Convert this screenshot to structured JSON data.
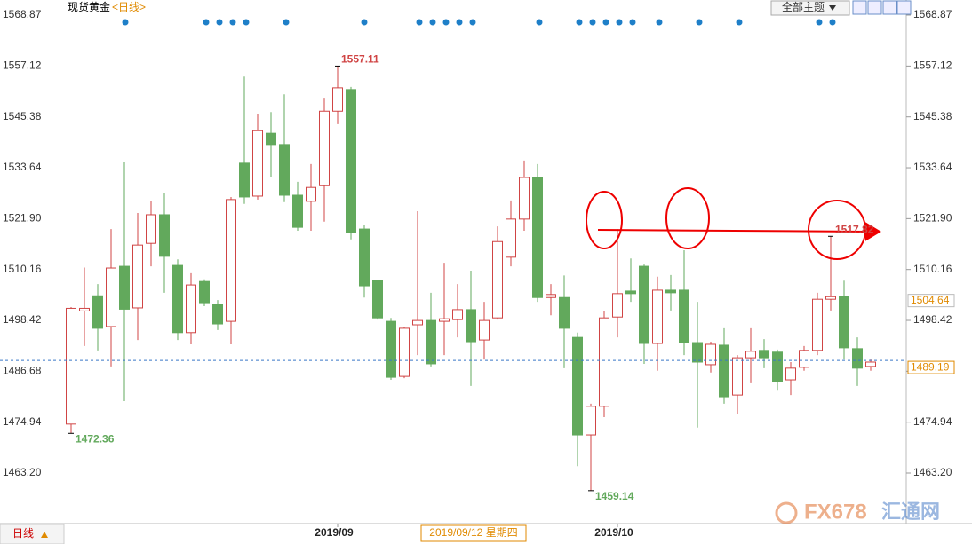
{
  "chart_data": {
    "type": "candlestick",
    "title": "现货黄金",
    "period": "<日线>",
    "theme_button": "全部主题",
    "bottom_period": "日线",
    "cursor_date": "2019/09/12 星期四",
    "watermark": "FX678",
    "watermark_cn": "汇通网",
    "up_color": "#d04444",
    "down_color": "#62a95c",
    "categories": [
      null,
      null,
      null,
      null,
      null,
      null,
      null,
      null,
      null,
      null,
      null,
      null,
      null,
      null,
      null,
      null,
      null,
      null,
      null,
      null,
      "2019/09",
      null,
      null,
      null,
      null,
      null,
      null,
      null,
      null,
      null,
      null,
      null,
      null,
      null,
      null,
      null,
      null,
      null,
      null,
      null,
      null,
      "2019/10",
      null,
      null,
      null,
      null,
      null,
      null,
      null,
      null,
      null,
      null,
      null,
      null,
      null,
      null,
      null,
      null,
      null,
      null,
      null
    ],
    "open": [
      1474.5,
      1500.6,
      1504.1,
      1497,
      1510.9,
      1501.3,
      1516.2,
      1522.8,
      1511.1,
      1495.6,
      1507.4,
      1502.1,
      1498.2,
      1534.7,
      1527.1,
      1541.6,
      1539,
      1527.3,
      1525.9,
      1529.5,
      1546.7,
      1551.7,
      1519.5,
      1507.6,
      1498.2,
      1485.5,
      1497.4,
      1498.4,
      1498.2,
      1498.6,
      1500.9,
      1493.9,
      1499.0,
      1513,
      1521.8,
      1531.4,
      1503.7,
      1503.7,
      1494.5,
      1472,
      1478.6,
      1499.2,
      1505.2,
      1510.9,
      1493.1,
      1505.4,
      1505.4,
      1493.3,
      1488.2,
      1492.7,
      1481.2,
      1489.8,
      1491.5,
      1491.1,
      1484.7,
      1487.6,
      1491.5,
      1503.3,
      1503.9,
      1491.9,
      1487.8
    ],
    "high": [
      1501.5,
      1510.6,
      1506.8,
      1519.5,
      1534.9,
      1523.2,
      1525.9,
      1527.9,
      1512.5,
      1509.3,
      1507.9,
      1503.1,
      1526.9,
      1554.7,
      1546.1,
      1546.5,
      1550.6,
      1530.4,
      1534.5,
      1549.8,
      1557.11,
      1552.3,
      1520.5,
      1507.6,
      1499.0,
      1497,
      1523.6,
      1504.8,
      1511.7,
      1506.8,
      1509.9,
      1502.7,
      1520.1,
      1526.1,
      1535.3,
      1534.5,
      1506.8,
      1508.8,
      1495.6,
      1479.2,
      1500.6,
      1519.5,
      1512.7,
      1511.3,
      1508.5,
      1508.9,
      1514.6,
      1502.7,
      1493.5,
      1496.6,
      1490.4,
      1496.6,
      1494.1,
      1491.7,
      1488.8,
      1492.5,
      1504.8,
      1517.82,
      1507.6,
      1494.5,
      1489.4
    ],
    "low": [
      1472.36,
      1492.5,
      1491.5,
      1487.8,
      1479.8,
      1493.9,
      1510.9,
      1504.8,
      1493.9,
      1492.9,
      1501.7,
      1496.2,
      1492.9,
      1525.3,
      1526.3,
      1531.4,
      1525.7,
      1519.1,
      1519.1,
      1521.2,
      1543.7,
      1517.1,
      1503.7,
      1498.6,
      1484.7,
      1485.1,
      1490.4,
      1487.8,
      1490.4,
      1494.5,
      1483.3,
      1489.4,
      1498.6,
      1510.9,
      1519.1,
      1502.7,
      1499.6,
      1487.4,
      1464.8,
      1459.14,
      1476.1,
      1494.5,
      1502.7,
      1488.4,
      1486.8,
      1500.7,
      1490.4,
      1473.7,
      1486.4,
      1479.2,
      1476.9,
      1483.9,
      1487.4,
      1482.2,
      1481.2,
      1486.8,
      1490.4,
      1500.7,
      1489.4,
      1483.3,
      1486.8
    ],
    "close": [
      1501.2,
      1501.2,
      1496.6,
      1510.5,
      1501,
      1515.8,
      1522.8,
      1513.2,
      1495.6,
      1506.6,
      1502.5,
      1497.6,
      1526.3,
      1526.9,
      1542.2,
      1539,
      1527.3,
      1519.9,
      1529.1,
      1546.7,
      1552.1,
      1518.7,
      1506.4,
      1499.0,
      1485.3,
      1496.6,
      1498.4,
      1488.4,
      1498.8,
      1500.9,
      1493.5,
      1498.4,
      1516.6,
      1521.8,
      1531.4,
      1503.7,
      1504.4,
      1496.6,
      1472,
      1478.6,
      1499.0,
      1504.6,
      1504.6,
      1493.1,
      1505.4,
      1504.8,
      1493.3,
      1488.8,
      1492.9,
      1480.8,
      1489.8,
      1491.3,
      1489.8,
      1484.3,
      1487.4,
      1491.5,
      1503.3,
      1503.9,
      1492.1,
      1487.4,
      1488.8
    ],
    "ylim": [
      1451.53,
      1572.35
    ],
    "yticks": [
      1568.87,
      1557.12,
      1545.38,
      1533.64,
      {
        "value": 1521.9,
        "label": "1521.90"
      },
      1510.16,
      1498.42,
      1486.68,
      1474.94,
      {
        "value": 1463.2,
        "label": "1463.20"
      }
    ],
    "last_price": 1489.19,
    "marker_price": 1504.64
  }
}
